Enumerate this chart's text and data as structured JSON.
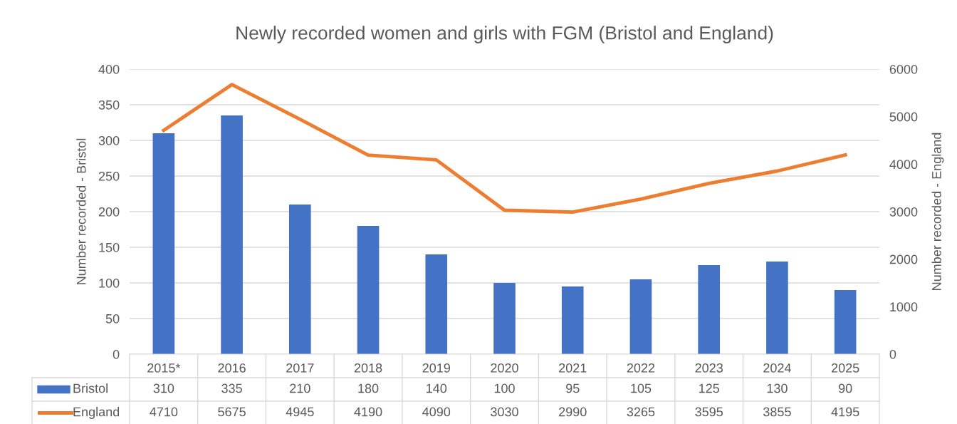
{
  "chart_data": {
    "type": "bar",
    "title": "Newly recorded women and girls with FGM (Bristol and England)",
    "ylabel": "Number recorded - Bristol",
    "y2label": "Number recorded - England",
    "categories": [
      "2015*",
      "2016",
      "2017",
      "2018",
      "2019",
      "2020",
      "2021",
      "2022",
      "2023",
      "2024",
      "2025"
    ],
    "series": [
      {
        "name": "Bristol",
        "color": "#4472c4",
        "values": [
          310,
          335,
          210,
          180,
          140,
          100,
          95,
          105,
          125,
          130,
          90
        ]
      },
      {
        "name": "England",
        "type": "line",
        "axis": "y2",
        "color": "#ed7d31",
        "values": [
          4710,
          5675,
          4945,
          4190,
          4090,
          3030,
          2990,
          3265,
          3595,
          3855,
          4195
        ]
      }
    ],
    "ylim": [
      0,
      400
    ],
    "yticks": [
      0,
      50,
      100,
      150,
      200,
      250,
      300,
      350,
      400
    ],
    "y2lim": [
      0,
      6000
    ],
    "y2ticks": [
      0,
      1000,
      2000,
      3000,
      4000,
      5000,
      6000
    ],
    "grid": "y",
    "legend": "bottom",
    "data_labels": true
  }
}
